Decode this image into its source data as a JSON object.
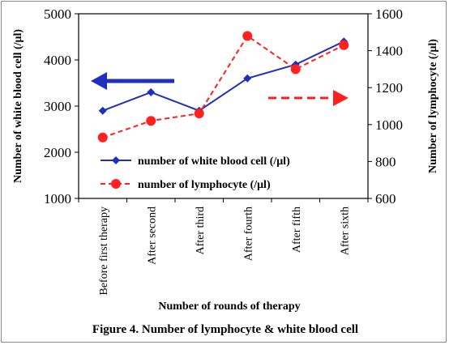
{
  "chart_data": {
    "type": "line",
    "categories": [
      "Before first therapy",
      "After second",
      "After third",
      "After fourth",
      "After fifth",
      "After sixth"
    ],
    "xlabel": "Number of rounds of therapy",
    "ylabel_left": "Number of white blood cell  (/μl)",
    "ylabel_right": "Number of lymphocyte (/μl)",
    "ylim_left": [
      1000,
      5000
    ],
    "yticks_left": [
      1000,
      2000,
      3000,
      4000,
      5000
    ],
    "ylim_right": [
      600,
      1600
    ],
    "yticks_right": [
      600,
      800,
      1000,
      1200,
      1400,
      1600
    ],
    "series": [
      {
        "name": "number of white blood cell (/μl)",
        "axis": "left",
        "color": "#1f2fbf",
        "marker": "diamond",
        "line": "solid",
        "values": [
          2900,
          3300,
          2900,
          3600,
          3900,
          4400
        ]
      },
      {
        "name": "number of lymphocyte (/μl)",
        "axis": "right",
        "color": "#ff2020",
        "marker": "circle",
        "line": "dashed",
        "values": [
          930,
          1020,
          1060,
          1480,
          1300,
          1430
        ]
      }
    ],
    "legend_position": "bottom-right inside plot",
    "grid": false
  },
  "caption": "Figure 4. Number of lymphocyte & white blood cell"
}
